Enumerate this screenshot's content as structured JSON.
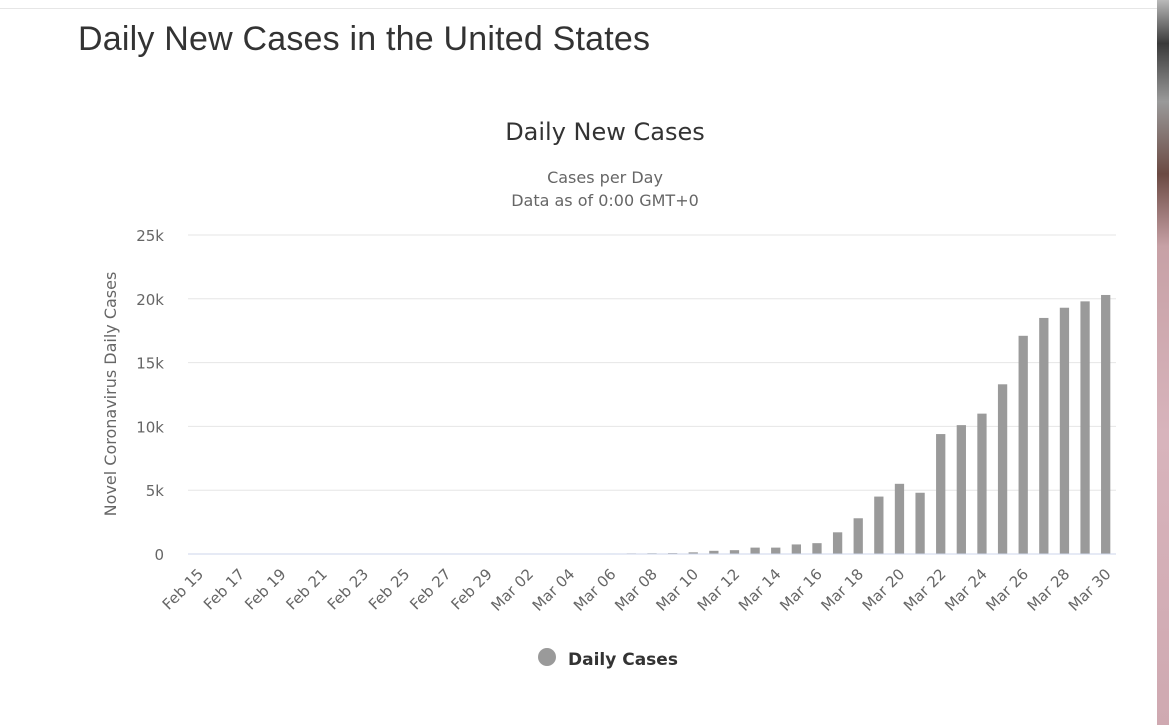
{
  "page": {
    "title": "Daily New Cases in the United States"
  },
  "colors": {
    "bar": "#9a9a9a",
    "grid": "#e6e6e6",
    "axis": "#ccd6eb",
    "text": "#333333",
    "muted": "#666666"
  },
  "chart_data": {
    "type": "bar",
    "title": "Daily New Cases",
    "subtitle_lines": [
      "Cases per Day",
      "Data as of 0:00 GMT+0"
    ],
    "xlabel": "",
    "ylabel": "Novel Coronavirus Daily Cases",
    "ylim": [
      0,
      25000
    ],
    "y_ticks": [
      0,
      5000,
      10000,
      15000,
      20000,
      25000
    ],
    "y_tick_labels": [
      "0",
      "5k",
      "10k",
      "15k",
      "20k",
      "25k"
    ],
    "x_tick_labels": [
      "Feb 15",
      "Feb 17",
      "Feb 19",
      "Feb 21",
      "Feb 23",
      "Feb 25",
      "Feb 27",
      "Feb 29",
      "Mar 02",
      "Mar 04",
      "Mar 06",
      "Mar 08",
      "Mar 10",
      "Mar 12",
      "Mar 14",
      "Mar 16",
      "Mar 18",
      "Mar 20",
      "Mar 22",
      "Mar 24",
      "Mar 26",
      "Mar 28",
      "Mar 30"
    ],
    "categories": [
      "Feb 15",
      "Feb 16",
      "Feb 17",
      "Feb 18",
      "Feb 19",
      "Feb 20",
      "Feb 21",
      "Feb 22",
      "Feb 23",
      "Feb 24",
      "Feb 25",
      "Feb 26",
      "Feb 27",
      "Feb 28",
      "Feb 29",
      "Mar 01",
      "Mar 02",
      "Mar 03",
      "Mar 04",
      "Mar 05",
      "Mar 06",
      "Mar 07",
      "Mar 08",
      "Mar 09",
      "Mar 10",
      "Mar 11",
      "Mar 12",
      "Mar 13",
      "Mar 14",
      "Mar 15",
      "Mar 16",
      "Mar 17",
      "Mar 18",
      "Mar 19",
      "Mar 20",
      "Mar 21",
      "Mar 22",
      "Mar 23",
      "Mar 24",
      "Mar 25",
      "Mar 26",
      "Mar 27",
      "Mar 28",
      "Mar 29",
      "Mar 30"
    ],
    "series": [
      {
        "name": "Daily Cases",
        "values": [
          0,
          0,
          0,
          0,
          0,
          0,
          0,
          0,
          0,
          0,
          0,
          0,
          0,
          0,
          10,
          10,
          20,
          20,
          30,
          30,
          40,
          50,
          60,
          70,
          130,
          250,
          300,
          500,
          500,
          750,
          850,
          1700,
          2800,
          4500,
          5500,
          4800,
          9400,
          10100,
          11000,
          13300,
          17100,
          18500,
          19300,
          19800,
          20300
        ]
      }
    ],
    "legend": {
      "position": "bottom-center",
      "label": "Daily Cases"
    }
  }
}
